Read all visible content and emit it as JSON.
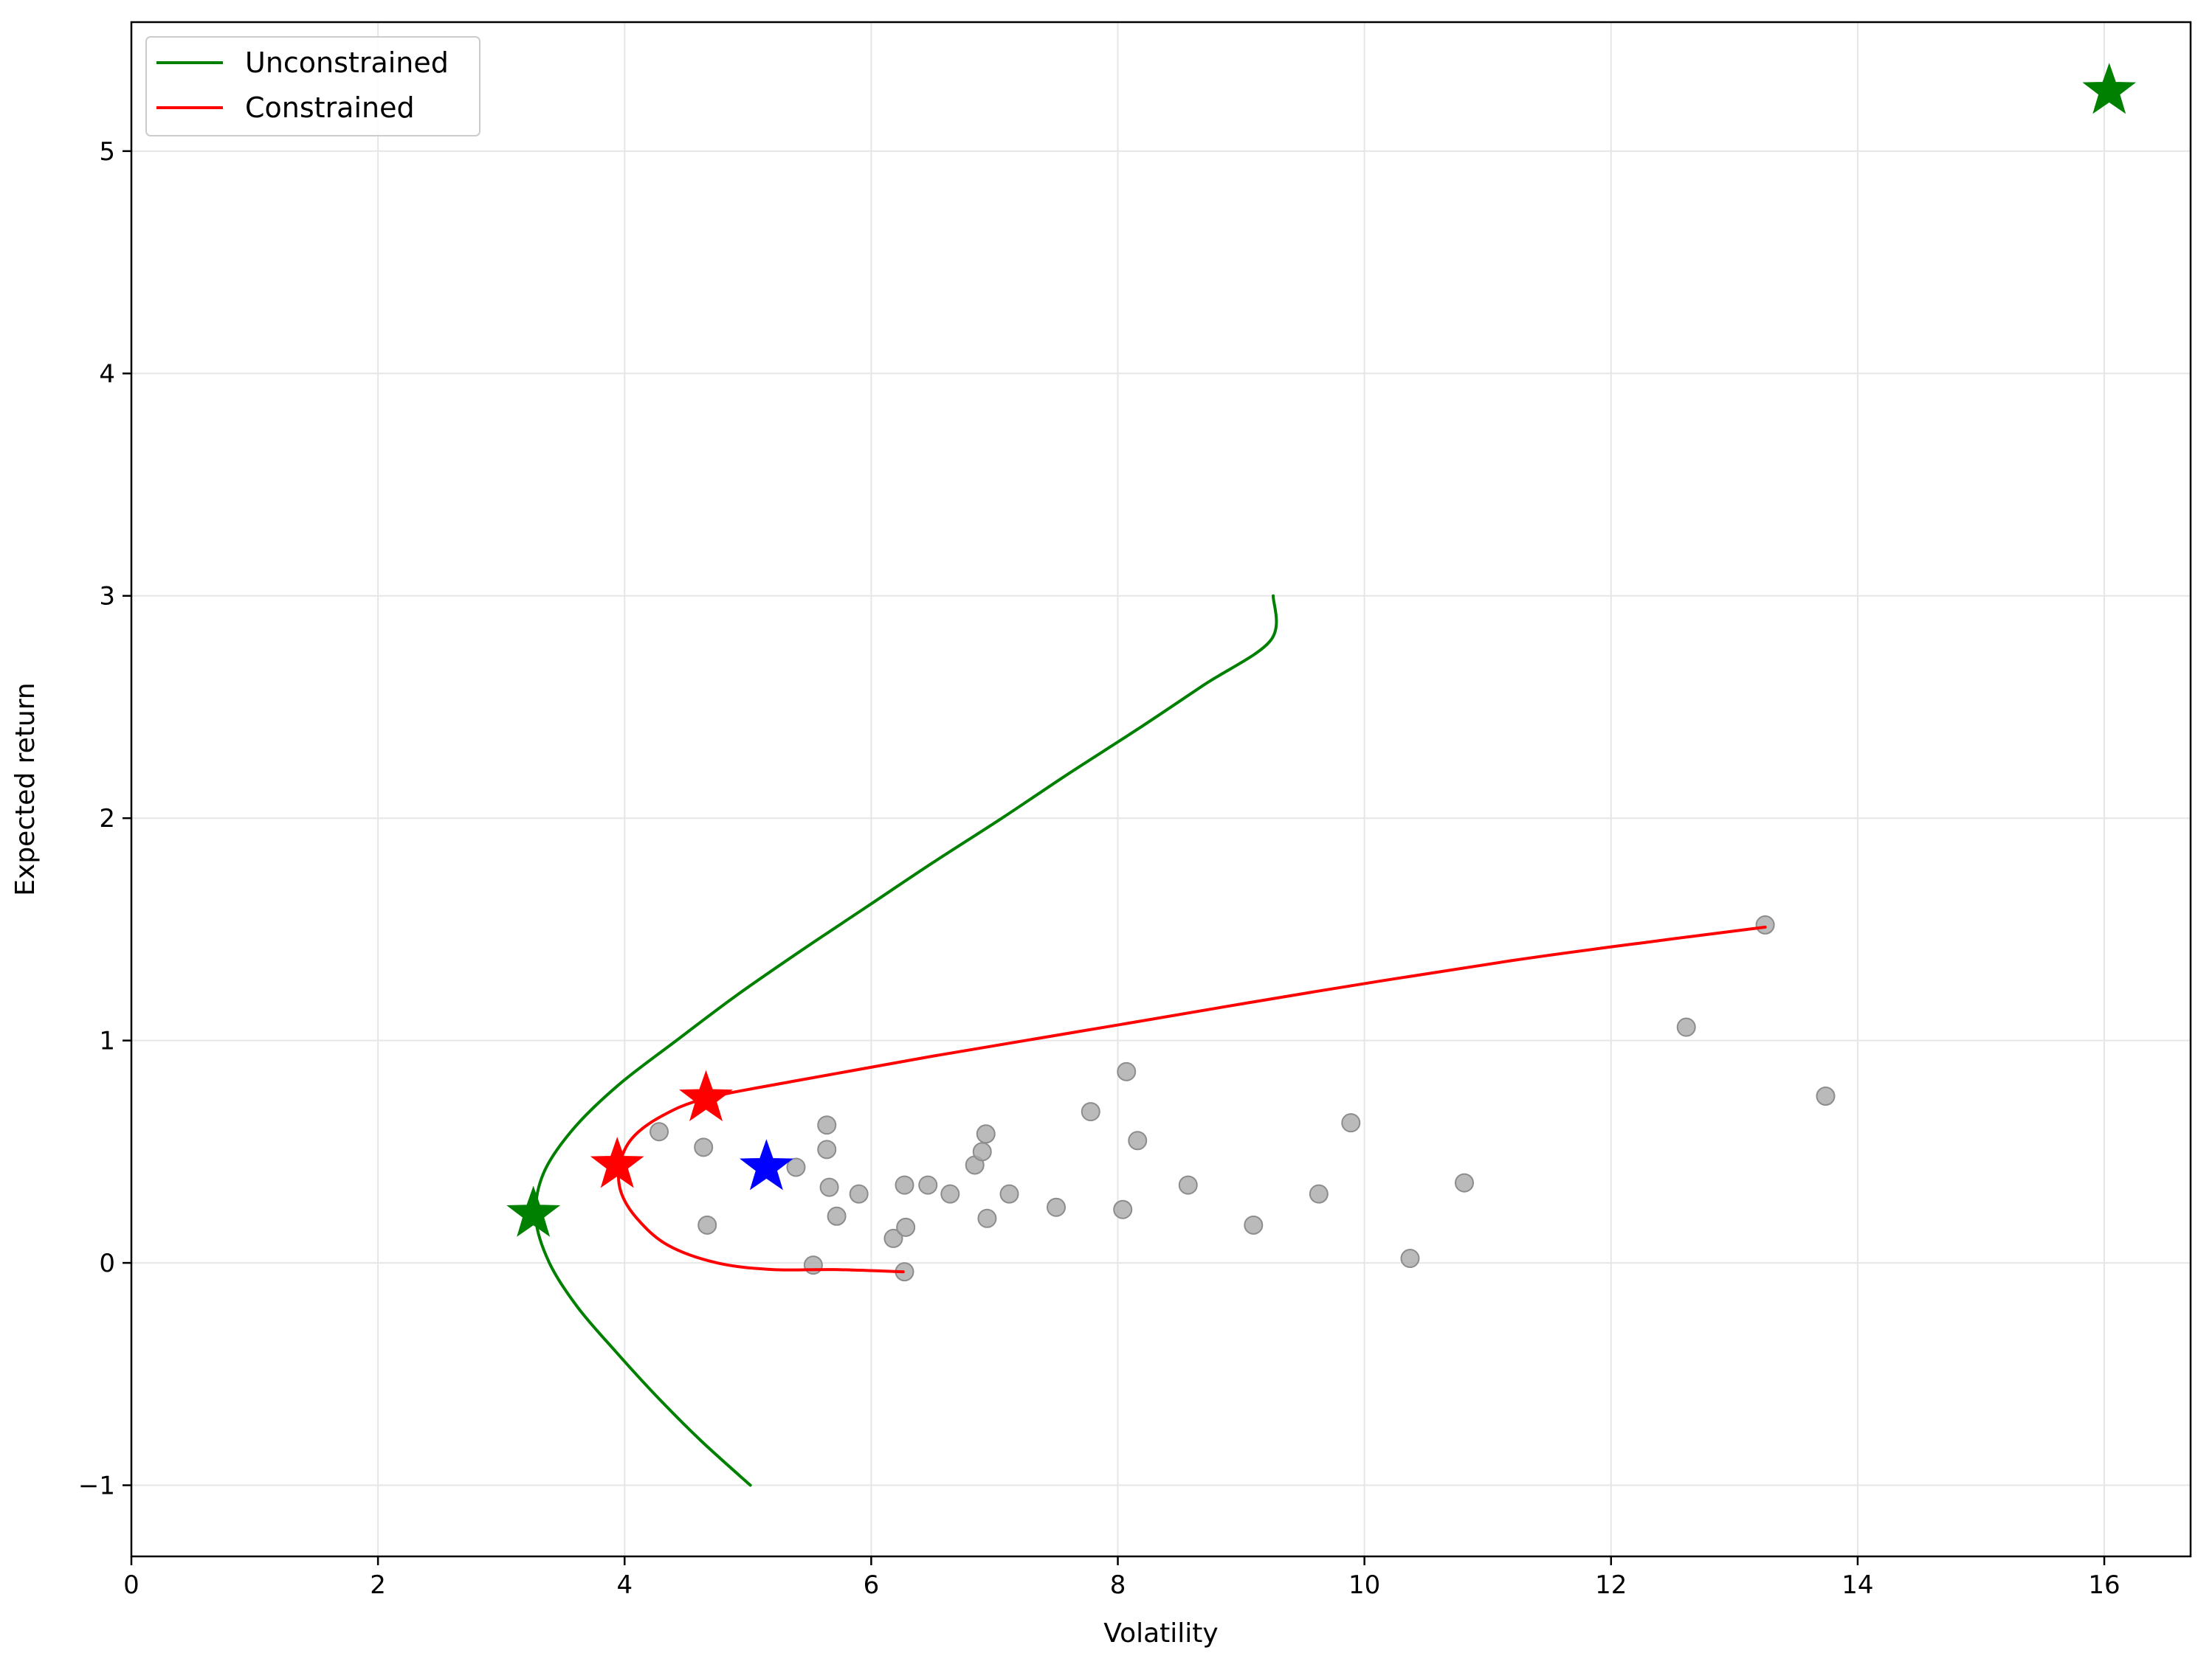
{
  "chart_data": {
    "type": "scatter",
    "title": "",
    "xlabel": "Volatility",
    "ylabel": "Expected return",
    "xlim": [
      0,
      16.7
    ],
    "ylim": [
      -1.32,
      5.58
    ],
    "xticks": [
      0,
      2,
      4,
      6,
      8,
      10,
      12,
      14,
      16
    ],
    "yticks": [
      -1,
      0,
      1,
      2,
      3,
      4,
      5
    ],
    "grid": true,
    "legend": {
      "placement": "top-left",
      "entries": [
        "Unconstrained",
        "Constrained"
      ]
    },
    "lines": [
      {
        "name": "Unconstrained",
        "color": "#008000",
        "points": [
          [
            5.02,
            -1.0
          ],
          [
            4.62,
            -0.8
          ],
          [
            4.26,
            -0.6
          ],
          [
            3.93,
            -0.4
          ],
          [
            3.62,
            -0.2
          ],
          [
            3.39,
            0.0
          ],
          [
            3.28,
            0.2
          ],
          [
            3.34,
            0.4
          ],
          [
            3.58,
            0.6
          ],
          [
            3.95,
            0.8
          ],
          [
            4.42,
            1.0
          ],
          [
            4.9,
            1.2
          ],
          [
            5.42,
            1.4
          ],
          [
            5.96,
            1.6
          ],
          [
            6.5,
            1.8
          ],
          [
            7.06,
            2.0
          ],
          [
            7.6,
            2.2
          ],
          [
            8.16,
            2.4
          ],
          [
            8.7,
            2.6
          ],
          [
            9.24,
            2.8
          ],
          [
            9.26,
            3.0
          ]
        ]
      },
      {
        "name": "Constrained",
        "color": "#ff0000",
        "points": [
          [
            6.26,
            -0.04
          ],
          [
            5.7,
            -0.03
          ],
          [
            5.2,
            -0.03
          ],
          [
            4.75,
            0.0
          ],
          [
            4.35,
            0.08
          ],
          [
            4.1,
            0.2
          ],
          [
            3.97,
            0.32
          ],
          [
            3.96,
            0.44
          ],
          [
            4.06,
            0.56
          ],
          [
            4.3,
            0.66
          ],
          [
            4.66,
            0.74
          ],
          [
            5.4,
            0.82
          ],
          [
            6.5,
            0.93
          ],
          [
            8.0,
            1.07
          ],
          [
            9.6,
            1.22
          ],
          [
            11.2,
            1.36
          ],
          [
            12.4,
            1.45
          ],
          [
            13.25,
            1.51
          ]
        ]
      }
    ],
    "scatter": {
      "color": "#a9a9a9",
      "points": [
        [
          4.28,
          0.59
        ],
        [
          4.64,
          0.52
        ],
        [
          4.67,
          0.17
        ],
        [
          5.39,
          0.43
        ],
        [
          5.53,
          -0.01
        ],
        [
          5.64,
          0.62
        ],
        [
          5.64,
          0.51
        ],
        [
          5.66,
          0.34
        ],
        [
          5.72,
          0.21
        ],
        [
          5.9,
          0.31
        ],
        [
          6.18,
          0.11
        ],
        [
          6.27,
          0.35
        ],
        [
          6.28,
          0.16
        ],
        [
          6.27,
          -0.04
        ],
        [
          6.46,
          0.35
        ],
        [
          6.64,
          0.31
        ],
        [
          6.84,
          0.44
        ],
        [
          6.9,
          0.5
        ],
        [
          6.93,
          0.58
        ],
        [
          6.94,
          0.2
        ],
        [
          7.12,
          0.31
        ],
        [
          7.5,
          0.25
        ],
        [
          7.78,
          0.68
        ],
        [
          8.04,
          0.24
        ],
        [
          8.07,
          0.86
        ],
        [
          8.16,
          0.55
        ],
        [
          8.57,
          0.35
        ],
        [
          9.1,
          0.17
        ],
        [
          9.63,
          0.31
        ],
        [
          9.89,
          0.63
        ],
        [
          10.37,
          0.02
        ],
        [
          10.81,
          0.36
        ],
        [
          12.61,
          1.06
        ],
        [
          13.25,
          1.52
        ],
        [
          13.74,
          0.75
        ]
      ]
    },
    "stars": [
      {
        "color": "#008000",
        "x": 3.26,
        "y": 0.22
      },
      {
        "color": "#008000",
        "x": 16.04,
        "y": 5.27
      },
      {
        "color": "#ff0000",
        "x": 3.94,
        "y": 0.44
      },
      {
        "color": "#ff0000",
        "x": 4.66,
        "y": 0.74
      },
      {
        "color": "#0000ff",
        "x": 5.15,
        "y": 0.43
      }
    ]
  }
}
